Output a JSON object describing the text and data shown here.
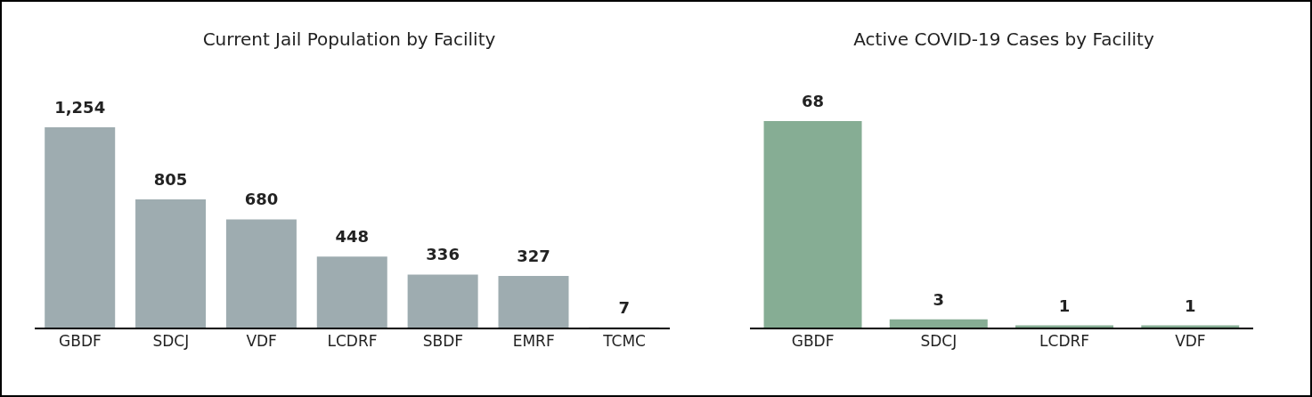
{
  "chart_data": [
    {
      "type": "bar",
      "title": "Current Jail Population by Facility",
      "categories": [
        "GBDF",
        "SDCJ",
        "VDF",
        "LCDRF",
        "SBDF",
        "EMRF",
        "TCMC"
      ],
      "values": [
        1254,
        805,
        680,
        448,
        336,
        327,
        7
      ],
      "value_labels": [
        "1,254",
        "805",
        "680",
        "448",
        "336",
        "327",
        "7"
      ],
      "color": "#9eacb0"
    },
    {
      "type": "bar",
      "title": "Active COVID-19 Cases by Facility",
      "categories": [
        "GBDF",
        "SDCJ",
        "LCDRF",
        "VDF"
      ],
      "values": [
        68,
        3,
        1,
        1
      ],
      "color": "#86ad94",
      "data_labels": true
    }
  ]
}
